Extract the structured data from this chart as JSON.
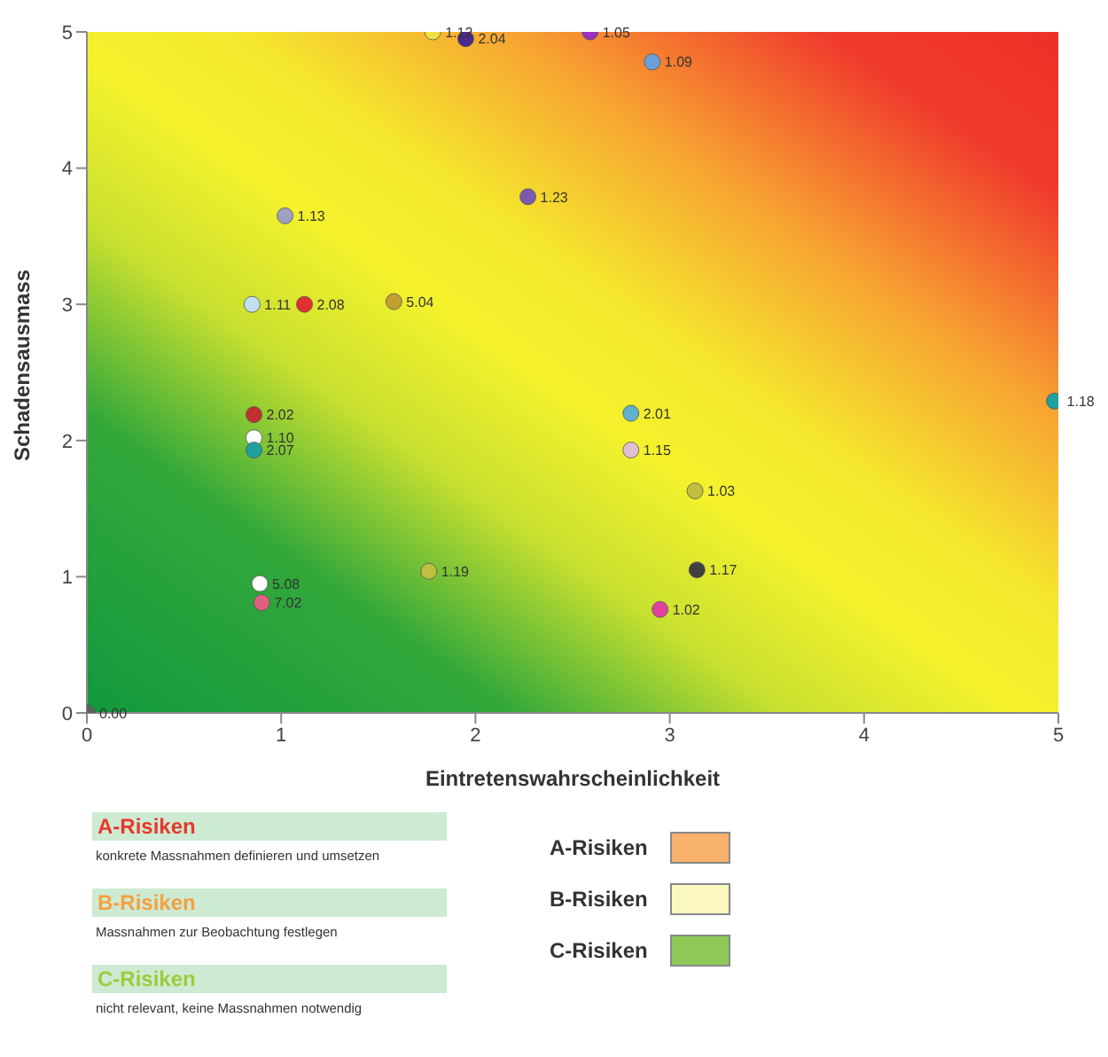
{
  "chart_data": {
    "type": "scatter",
    "xlabel": "Eintretenswahrscheinlichkeit",
    "ylabel": "Schadensausmass",
    "x": [
      1.78,
      1.95,
      2.59,
      2.91,
      2.27,
      1.02,
      0.85,
      1.12,
      1.58,
      0.86,
      0.86,
      0.86,
      2.8,
      2.8,
      3.13,
      4.98,
      3.14,
      1.76,
      0.89,
      0.9,
      2.95,
      0
    ],
    "values": [
      5.0,
      4.95,
      5.0,
      4.78,
      3.79,
      3.65,
      3.0,
      3.0,
      3.02,
      2.19,
      2.02,
      1.93,
      2.2,
      1.93,
      1.63,
      2.29,
      1.05,
      1.04,
      0.95,
      0.81,
      0.76,
      0
    ],
    "colors": [
      "#f0e040",
      "#4b2a8c",
      "#9b30c0",
      "#6aa0d8",
      "#7a5ab0",
      "#a0a0c0",
      "#c0e0f0",
      "#e03030",
      "#c0a030",
      "#c03030",
      "#ffffff",
      "#20a0a0",
      "#60b0d0",
      "#e0c0d0",
      "#c0c040",
      "#20a0a0",
      "#404040",
      "#c0c040",
      "#ffffff",
      "#e06080",
      "#e040a0",
      "#606060"
    ],
    "marker": "circle",
    "xlim": [
      0,
      5
    ],
    "xticks": [
      0,
      1,
      2,
      3,
      4,
      5
    ],
    "ylim": [
      0,
      5
    ],
    "yticks": [
      0,
      1,
      2,
      3,
      4,
      5
    ],
    "grid": false,
    "legend": false,
    "annotations": [
      "A-Risiken",
      "konkrete Massnahmen definieren und umsetzen",
      "B-Risiken",
      "Massnahmen zur Beobachtung festlegen",
      "C-Risiken",
      "nicht relevant, keine Massnahmen notwendig",
      "A-Risiken",
      "B-Risiken",
      "C-Risiken",
      {
        "text": "1.12",
        "x": 1.78,
        "y": 5.0
      },
      {
        "text": "2.04",
        "x": 1.95,
        "y": 4.95
      },
      {
        "text": "1.05",
        "x": 2.59,
        "y": 5.0
      },
      {
        "text": "1.09",
        "x": 2.91,
        "y": 4.78
      },
      {
        "text": "1.23",
        "x": 2.27,
        "y": 3.79
      },
      {
        "text": "1.13",
        "x": 1.02,
        "y": 3.65
      },
      {
        "text": "1.11",
        "x": 0.85,
        "y": 3.0
      },
      {
        "text": "2.08",
        "x": 1.12,
        "y": 3.0
      },
      {
        "text": "5.04",
        "x": 1.58,
        "y": 3.02
      },
      {
        "text": "2.02",
        "x": 0.86,
        "y": 2.19
      },
      {
        "text": "1.10",
        "x": 0.86,
        "y": 2.02
      },
      {
        "text": "2.07",
        "x": 0.86,
        "y": 1.93
      },
      {
        "text": "2.01",
        "x": 2.8,
        "y": 2.2
      },
      {
        "text": "1.15",
        "x": 2.8,
        "y": 1.93
      },
      {
        "text": "1.03",
        "x": 3.13,
        "y": 1.63
      },
      {
        "text": "1.18",
        "x": 4.98,
        "y": 2.29
      },
      {
        "text": "1.17",
        "x": 3.14,
        "y": 1.05
      },
      {
        "text": "1.19",
        "x": 1.76,
        "y": 1.04
      },
      {
        "text": "5.08",
        "x": 0.89,
        "y": 0.95
      },
      {
        "text": "7.02",
        "x": 0.9,
        "y": 0.81
      },
      {
        "text": "1.02",
        "x": 2.95,
        "y": 0.76
      },
      {
        "text": "0.00",
        "x": 0,
        "y": 0
      }
    ]
  }
}
